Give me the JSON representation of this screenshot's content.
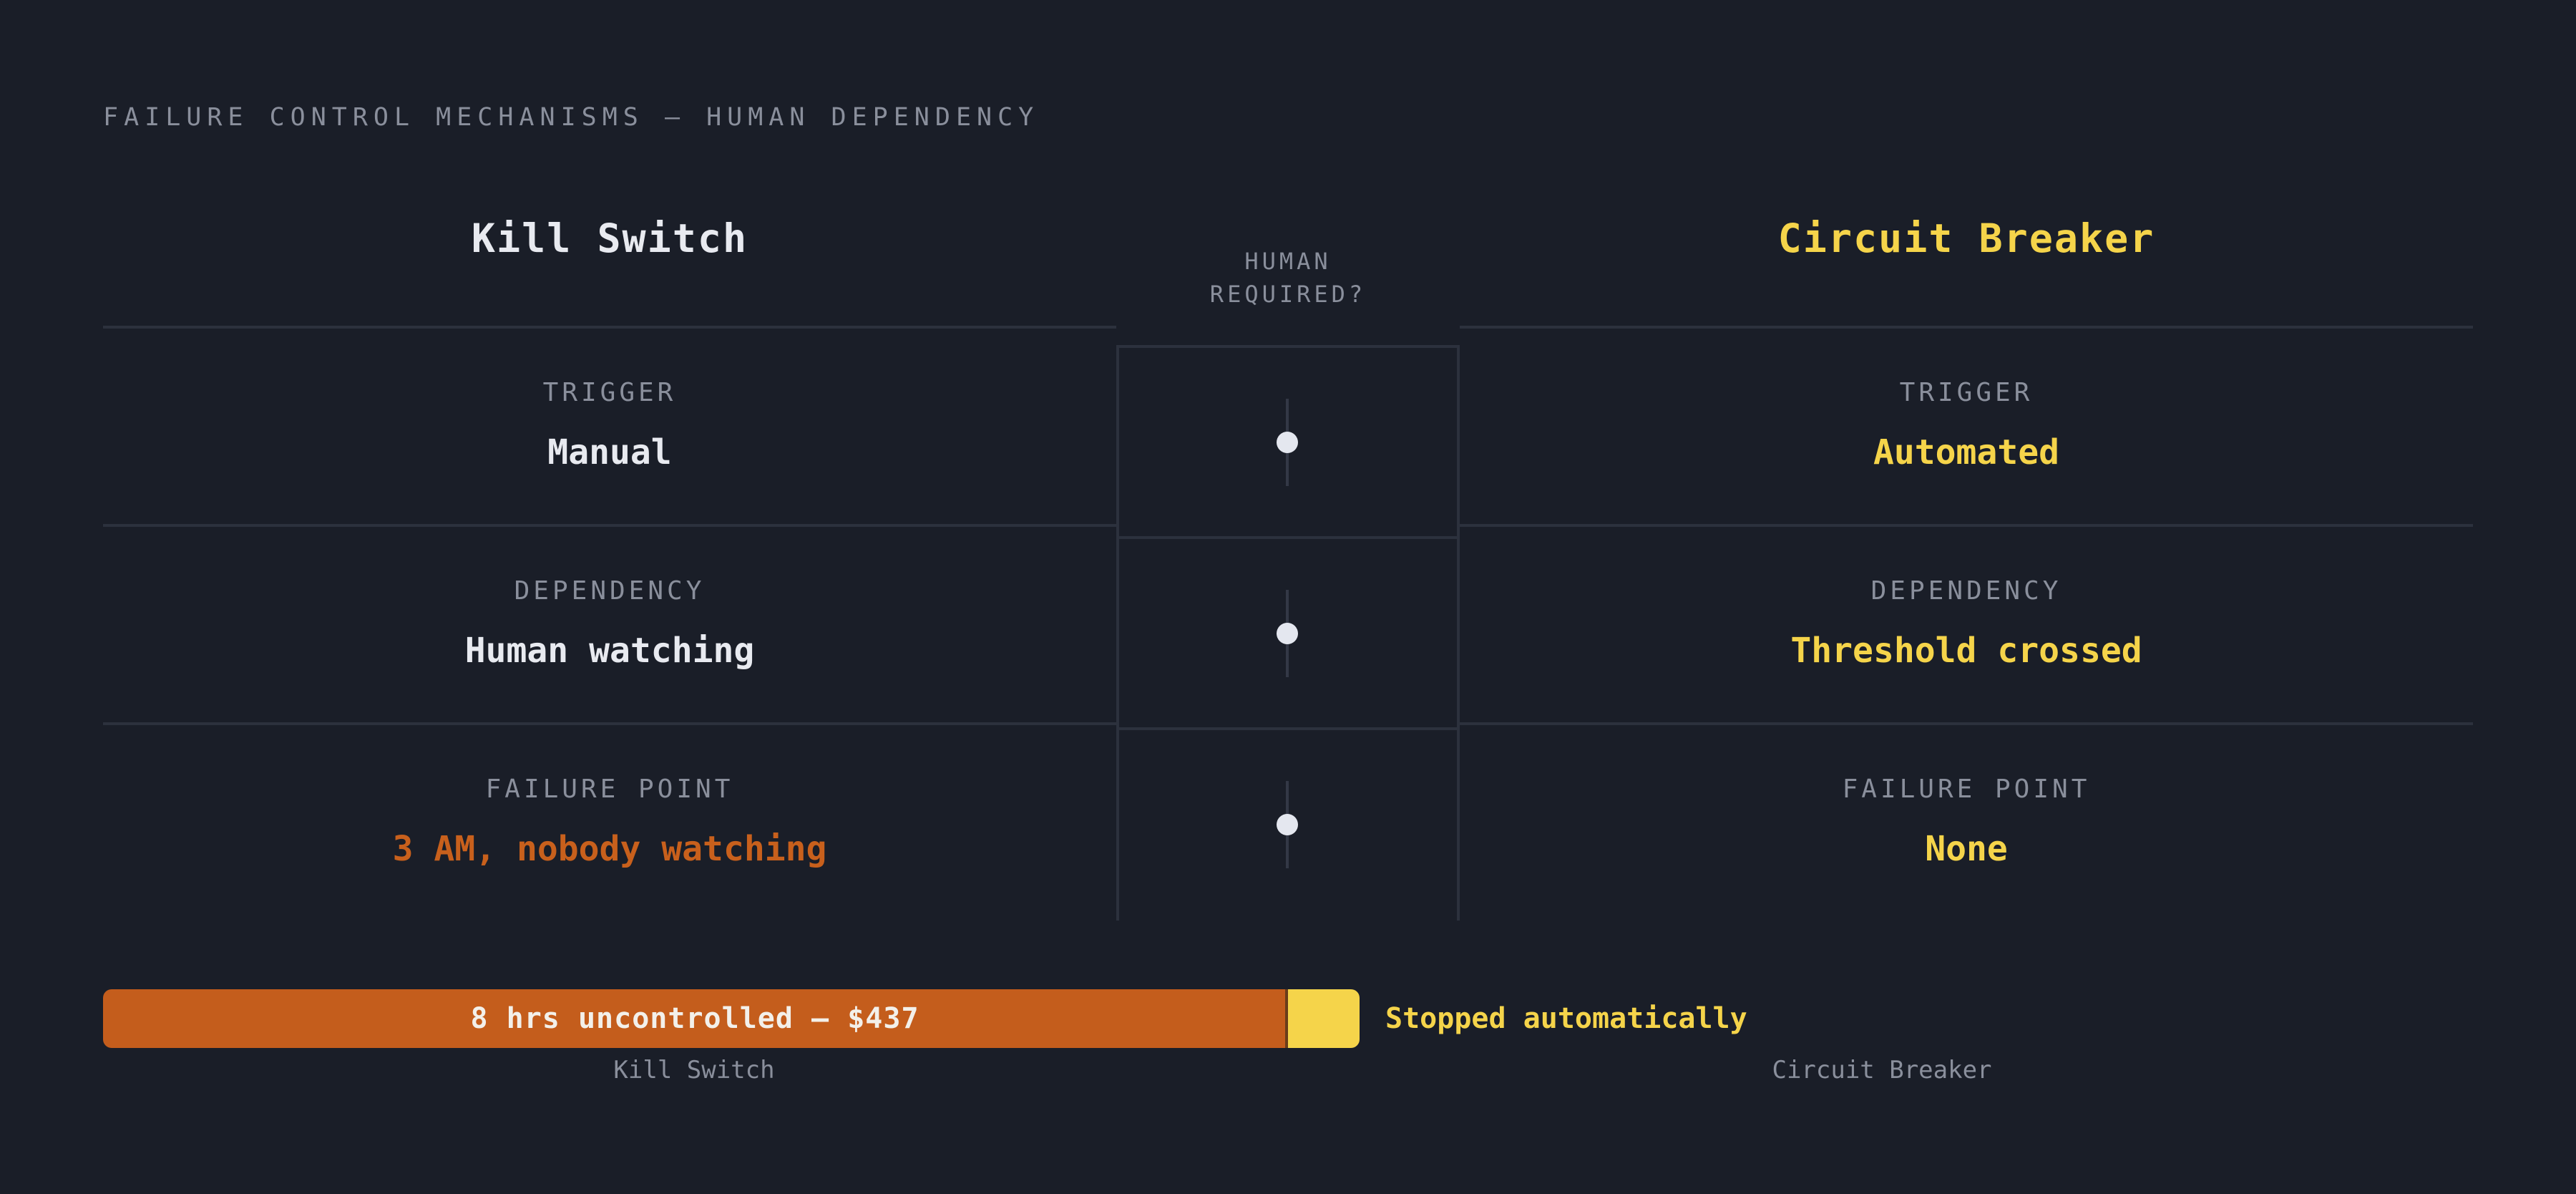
{
  "eyebrow": "FAILURE CONTROL MECHANISMS — HUMAN DEPENDENCY",
  "columns": {
    "left_title": "Kill Switch",
    "right_title": "Circuit Breaker",
    "middle_header": [
      "HUMAN",
      "REQUIRED?"
    ]
  },
  "rows": [
    {
      "label": "TRIGGER",
      "left": "Manual",
      "right": "Automated"
    },
    {
      "label": "DEPENDENCY",
      "left": "Human watching",
      "right": "Threshold crossed"
    },
    {
      "label": "FAILURE POINT",
      "left": "3 AM, nobody watching",
      "right": "None"
    }
  ],
  "comparison_bar": {
    "orange_label": "8 hrs uncontrolled — $437",
    "yellow_label": "Stopped automatically",
    "left_caption": "Kill Switch",
    "right_caption": "Circuit Breaker"
  },
  "colors": {
    "background": "#1a1e28",
    "accent_yellow": "#f5d44a",
    "accent_orange": "#c45d1c",
    "muted_text": "#8a8f9c",
    "primary_text": "#e8eaf0"
  }
}
